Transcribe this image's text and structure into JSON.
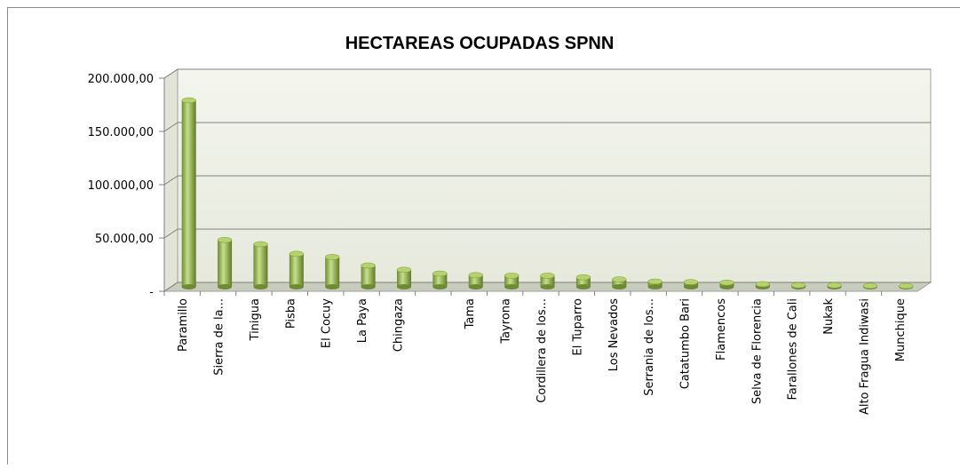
{
  "chart_data": {
    "type": "bar",
    "title": "HECTAREAS OCUPADAS SPNN",
    "categories": [
      "Paramillo",
      "Sierra de la...",
      "Tinigua",
      "Pisba",
      "El Cocuy",
      "La Paya",
      "Chingaza",
      null,
      "Tama",
      "Tayrona",
      "Cordillera de los...",
      "El Tuparro",
      "Los Nevados",
      "Serrania de los...",
      "Catatumbo Bari",
      "Flamencos",
      "Selva de Florencia",
      "Farallones de Cali",
      "Nukak",
      "Alto Fragua Indiwasi",
      "Munchique"
    ],
    "values": [
      175000,
      44000,
      40000,
      31000,
      28000,
      20000,
      16000,
      12500,
      11000,
      10500,
      10500,
      9000,
      7000,
      5000,
      4500,
      4000,
      2500,
      1500,
      1500,
      1000,
      800
    ],
    "color": "#9bbb59",
    "ylim": [
      0,
      200000
    ],
    "yticks": [
      {
        "value": 0,
        "label": "-"
      },
      {
        "value": 50000,
        "label": "50.000,00"
      },
      {
        "value": 100000,
        "label": "100.000,00"
      },
      {
        "value": 150000,
        "label": "150.000,00"
      },
      {
        "value": 200000,
        "label": "200.000,00"
      }
    ],
    "grid": true
  }
}
